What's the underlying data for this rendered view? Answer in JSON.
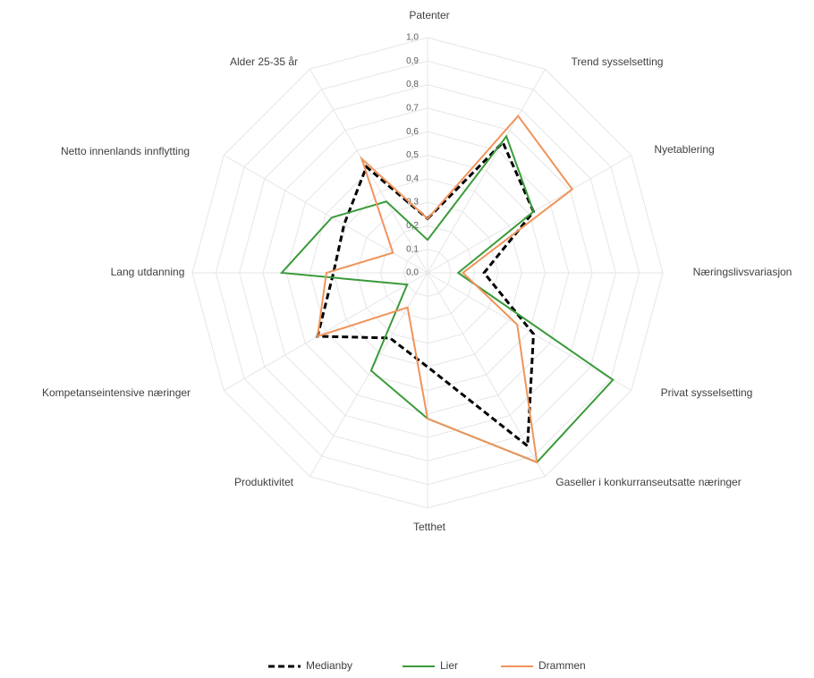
{
  "chart_data": {
    "type": "radar",
    "categories": [
      "Patenter",
      "Trend sysselsetting",
      "Nyetablering",
      "Næringslivsvariasjon",
      "Privat sysselsetting",
      "Gaseller i konkurranseutsatte næringer",
      "Tetthet",
      "Produktivitet",
      "Kompetanseintensive næringer",
      "Lang utdanning",
      "Netto innenlands innflytting",
      "Alder 25-35 år"
    ],
    "series": [
      {
        "name": "Medianby",
        "color": "#000000",
        "dash": true,
        "values": [
          0.23,
          0.64,
          0.52,
          0.24,
          0.52,
          0.85,
          0.4,
          0.32,
          0.54,
          0.4,
          0.41,
          0.52
        ]
      },
      {
        "name": "Lier",
        "color": "#3a9a3a",
        "dash": false,
        "values": [
          0.14,
          0.67,
          0.52,
          0.13,
          0.91,
          0.93,
          0.62,
          0.48,
          0.1,
          0.62,
          0.47,
          0.35
        ]
      },
      {
        "name": "Drammen",
        "color": "#f0945a",
        "dash": false,
        "values": [
          0.23,
          0.77,
          0.71,
          0.15,
          0.44,
          0.93,
          0.62,
          0.17,
          0.54,
          0.43,
          0.17,
          0.56
        ]
      }
    ],
    "ylim": [
      0,
      1
    ],
    "yticks": [
      {
        "value": 0,
        "label": "0,0"
      },
      {
        "value": 0.1,
        "label": "0,1"
      },
      {
        "value": 0.2,
        "label": "0,2"
      },
      {
        "value": 0.3,
        "label": "0,3"
      },
      {
        "value": 0.4,
        "label": "0,4"
      },
      {
        "value": 0.5,
        "label": "0,5"
      },
      {
        "value": 0.6,
        "label": "0,6"
      },
      {
        "value": 0.7,
        "label": "0,7"
      },
      {
        "value": 0.8,
        "label": "0,8"
      },
      {
        "value": 0.9,
        "label": "0,9"
      },
      {
        "value": 1,
        "label": "1,0"
      }
    ],
    "grid": true,
    "legend": "bottom"
  }
}
